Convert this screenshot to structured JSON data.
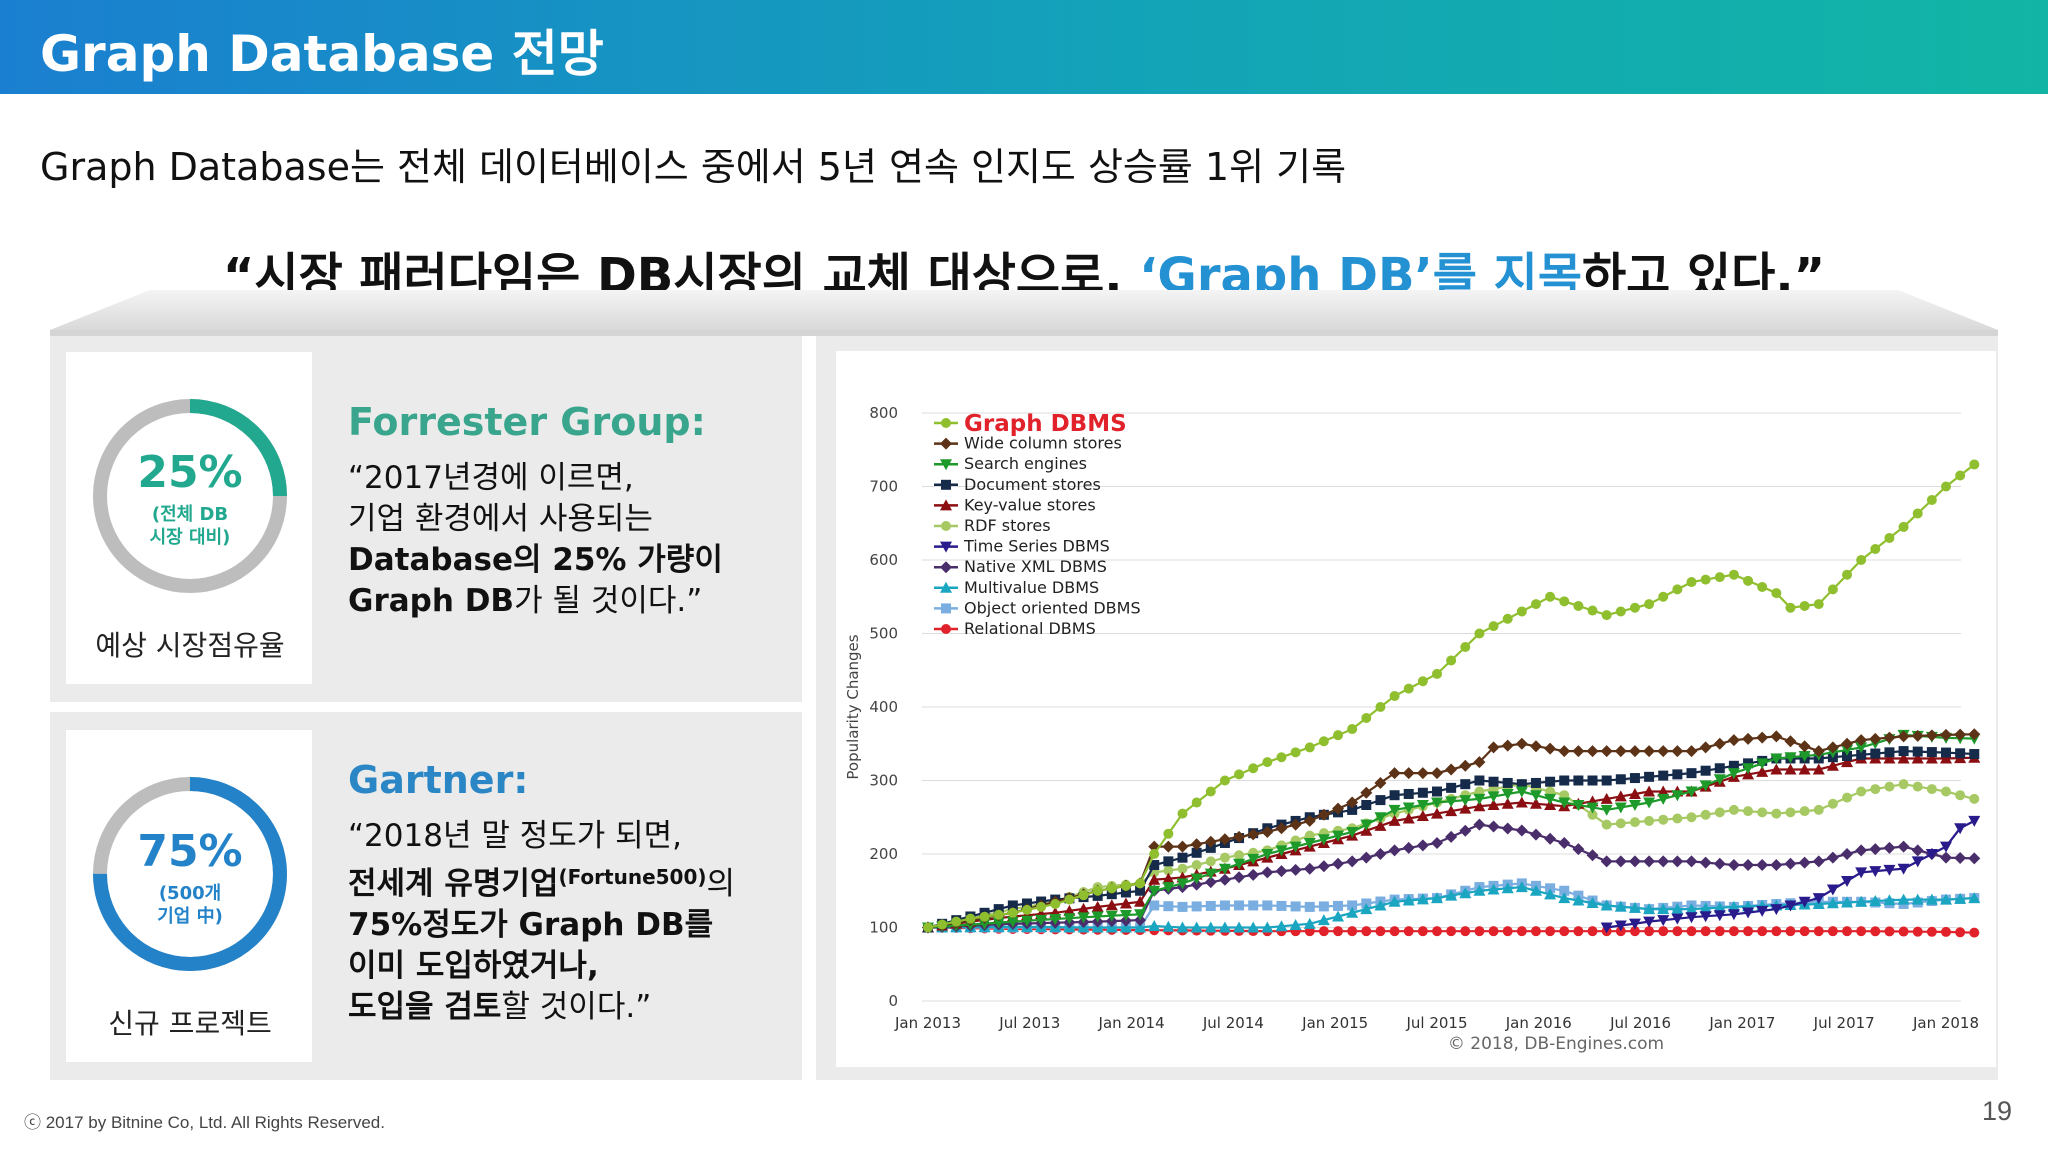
{
  "header": {
    "title": "Graph Database 전망"
  },
  "subtitle": "Graph Database는 전체 데이터베이스 중에서 5년 연속 인지도 상승률 1위 기록",
  "quote": {
    "part1": "“시장 패러다임은 DB시장의 교체 대상으로, ",
    "highlight": "‘Graph DB’를 지목",
    "part2": "하고 있다.”"
  },
  "forrester": {
    "percent": "25%",
    "percent_note_1": "(전체 DB",
    "percent_note_2": "시장 대비)",
    "caption": "예상 시장점유율",
    "title": "Forrester Group:",
    "line1": "“2017년경에 이르면,",
    "line2": "기업 환경에서 사용되는",
    "line3_bold": "Database의 25% 가량이",
    "line4_bold": "Graph DB",
    "line4_rest": "가 될 것이다.”",
    "ring_value": 0.25,
    "color": "#22a88f"
  },
  "gartner": {
    "percent": "75%",
    "percent_note_1": "(500개",
    "percent_note_2": "기업 中)",
    "caption": "신규 프로젝트",
    "title": "Gartner:",
    "line1": "“2018년 말 정도가 되면,",
    "line2_bold": "전세계 유명기업",
    "line2_sup": "(Fortune500)",
    "line2_rest": "의",
    "line3_bold": "75%정도가 Graph DB를",
    "line4_bold": "이미 도입하였거나,",
    "line5_bold": "도입을 검토",
    "line5_rest": "할 것이다.”",
    "ring_value": 0.75,
    "color": "#2382c8"
  },
  "chart_data": {
    "type": "line",
    "ylabel": "Popularity Changes",
    "ylim": [
      0,
      800
    ],
    "yticks": [
      0,
      100,
      200,
      300,
      400,
      500,
      600,
      700,
      800
    ],
    "x_labels": [
      "Jan 2013",
      "Jul 2013",
      "Jan 2014",
      "Jul 2014",
      "Jan 2015",
      "Jul 2015",
      "Jan 2016",
      "Jul 2016",
      "Jan 2017",
      "Jul 2017",
      "Jan 2018"
    ],
    "grid": "horizontal",
    "legend_position": "top-left",
    "credit": "© 2018, DB-Engines.com",
    "series": [
      {
        "name": "Graph DBMS",
        "color": "#8fbf2f",
        "marker": "circle",
        "anchors": [
          [
            0,
            100
          ],
          [
            3,
            112
          ],
          [
            6,
            120
          ],
          [
            9,
            132
          ],
          [
            12,
            150
          ],
          [
            15,
            160
          ],
          [
            16,
            200
          ],
          [
            18,
            255
          ],
          [
            21,
            300
          ],
          [
            24,
            325
          ],
          [
            27,
            345
          ],
          [
            30,
            370
          ],
          [
            33,
            415
          ],
          [
            36,
            445
          ],
          [
            39,
            500
          ],
          [
            42,
            530
          ],
          [
            44,
            550
          ],
          [
            48,
            525
          ],
          [
            51,
            540
          ],
          [
            54,
            570
          ],
          [
            57,
            580
          ],
          [
            60,
            555
          ],
          [
            61,
            535
          ],
          [
            63,
            540
          ],
          [
            66,
            600
          ],
          [
            69,
            645
          ],
          [
            72,
            700
          ],
          [
            74,
            730
          ]
        ]
      },
      {
        "name": "Wide column stores",
        "color": "#5c3317",
        "marker": "diamond",
        "anchors": [
          [
            0,
            100
          ],
          [
            6,
            120
          ],
          [
            12,
            150
          ],
          [
            15,
            160
          ],
          [
            16,
            210
          ],
          [
            18,
            210
          ],
          [
            21,
            220
          ],
          [
            24,
            230
          ],
          [
            27,
            245
          ],
          [
            30,
            270
          ],
          [
            33,
            310
          ],
          [
            36,
            310
          ],
          [
            39,
            325
          ],
          [
            40,
            345
          ],
          [
            42,
            350
          ],
          [
            45,
            340
          ],
          [
            48,
            340
          ],
          [
            51,
            340
          ],
          [
            54,
            340
          ],
          [
            57,
            355
          ],
          [
            60,
            360
          ],
          [
            63,
            340
          ],
          [
            66,
            355
          ],
          [
            69,
            360
          ],
          [
            72,
            362
          ],
          [
            74,
            363
          ]
        ]
      },
      {
        "name": "Search engines",
        "color": "#1d9a2a",
        "marker": "triangle-down",
        "anchors": [
          [
            0,
            100
          ],
          [
            6,
            108
          ],
          [
            12,
            115
          ],
          [
            15,
            118
          ],
          [
            16,
            150
          ],
          [
            18,
            160
          ],
          [
            21,
            180
          ],
          [
            24,
            200
          ],
          [
            27,
            215
          ],
          [
            30,
            230
          ],
          [
            33,
            260
          ],
          [
            36,
            270
          ],
          [
            39,
            275
          ],
          [
            42,
            285
          ],
          [
            45,
            270
          ],
          [
            48,
            260
          ],
          [
            51,
            270
          ],
          [
            54,
            285
          ],
          [
            57,
            310
          ],
          [
            60,
            330
          ],
          [
            63,
            335
          ],
          [
            66,
            345
          ],
          [
            69,
            362
          ],
          [
            72,
            358
          ],
          [
            74,
            357
          ]
        ]
      },
      {
        "name": "Document stores",
        "color": "#162b4a",
        "marker": "square",
        "anchors": [
          [
            0,
            100
          ],
          [
            3,
            115
          ],
          [
            6,
            130
          ],
          [
            9,
            138
          ],
          [
            12,
            143
          ],
          [
            15,
            150
          ],
          [
            16,
            185
          ],
          [
            18,
            195
          ],
          [
            21,
            215
          ],
          [
            24,
            235
          ],
          [
            27,
            250
          ],
          [
            30,
            260
          ],
          [
            33,
            280
          ],
          [
            36,
            285
          ],
          [
            39,
            300
          ],
          [
            42,
            295
          ],
          [
            45,
            300
          ],
          [
            48,
            300
          ],
          [
            51,
            305
          ],
          [
            54,
            310
          ],
          [
            57,
            320
          ],
          [
            60,
            330
          ],
          [
            63,
            330
          ],
          [
            66,
            335
          ],
          [
            69,
            340
          ],
          [
            72,
            338
          ],
          [
            74,
            336
          ]
        ]
      },
      {
        "name": "Key-value stores",
        "color": "#8b0f12",
        "marker": "triangle",
        "anchors": [
          [
            0,
            100
          ],
          [
            3,
            108
          ],
          [
            6,
            115
          ],
          [
            9,
            120
          ],
          [
            12,
            128
          ],
          [
            15,
            135
          ],
          [
            16,
            165
          ],
          [
            18,
            168
          ],
          [
            21,
            180
          ],
          [
            24,
            195
          ],
          [
            27,
            210
          ],
          [
            30,
            225
          ],
          [
            33,
            245
          ],
          [
            36,
            255
          ],
          [
            39,
            265
          ],
          [
            42,
            270
          ],
          [
            45,
            265
          ],
          [
            48,
            275
          ],
          [
            51,
            285
          ],
          [
            54,
            285
          ],
          [
            57,
            305
          ],
          [
            60,
            315
          ],
          [
            63,
            315
          ],
          [
            66,
            330
          ],
          [
            69,
            330
          ],
          [
            72,
            330
          ],
          [
            74,
            331
          ]
        ]
      },
      {
        "name": "RDF stores",
        "color": "#a6c963",
        "marker": "circle",
        "anchors": [
          [
            0,
            100
          ],
          [
            3,
            112
          ],
          [
            6,
            125
          ],
          [
            9,
            135
          ],
          [
            12,
            155
          ],
          [
            15,
            160
          ],
          [
            16,
            175
          ],
          [
            18,
            180
          ],
          [
            21,
            195
          ],
          [
            24,
            205
          ],
          [
            27,
            225
          ],
          [
            30,
            235
          ],
          [
            33,
            255
          ],
          [
            36,
            270
          ],
          [
            39,
            285
          ],
          [
            42,
            295
          ],
          [
            45,
            280
          ],
          [
            48,
            240
          ],
          [
            51,
            245
          ],
          [
            54,
            250
          ],
          [
            57,
            260
          ],
          [
            60,
            255
          ],
          [
            63,
            260
          ],
          [
            66,
            285
          ],
          [
            69,
            295
          ],
          [
            72,
            285
          ],
          [
            74,
            275
          ]
        ]
      },
      {
        "name": "Time Series DBMS",
        "color": "#2a1b8c",
        "marker": "triangle-down",
        "anchors": [
          [
            48,
            100
          ],
          [
            51,
            108
          ],
          [
            54,
            114
          ],
          [
            57,
            118
          ],
          [
            60,
            125
          ],
          [
            63,
            140
          ],
          [
            66,
            175
          ],
          [
            69,
            180
          ],
          [
            72,
            210
          ],
          [
            73,
            235
          ],
          [
            74,
            245
          ]
        ]
      },
      {
        "name": "Native XML DBMS",
        "color": "#4a2e6b",
        "marker": "diamond",
        "anchors": [
          [
            0,
            100
          ],
          [
            6,
            105
          ],
          [
            12,
            108
          ],
          [
            15,
            110
          ],
          [
            16,
            150
          ],
          [
            18,
            155
          ],
          [
            21,
            165
          ],
          [
            24,
            175
          ],
          [
            27,
            180
          ],
          [
            30,
            190
          ],
          [
            33,
            205
          ],
          [
            36,
            215
          ],
          [
            39,
            240
          ],
          [
            42,
            232
          ],
          [
            45,
            215
          ],
          [
            48,
            190
          ],
          [
            51,
            190
          ],
          [
            54,
            190
          ],
          [
            57,
            185
          ],
          [
            60,
            185
          ],
          [
            63,
            190
          ],
          [
            66,
            205
          ],
          [
            69,
            210
          ],
          [
            72,
            195
          ],
          [
            74,
            194
          ]
        ]
      },
      {
        "name": "Multivalue DBMS",
        "color": "#1aa5c1",
        "marker": "triangle",
        "anchors": [
          [
            0,
            100
          ],
          [
            6,
            101
          ],
          [
            12,
            100
          ],
          [
            15,
            100
          ],
          [
            16,
            102
          ],
          [
            18,
            100
          ],
          [
            21,
            100
          ],
          [
            24,
            100
          ],
          [
            27,
            105
          ],
          [
            30,
            120
          ],
          [
            33,
            135
          ],
          [
            36,
            140
          ],
          [
            39,
            150
          ],
          [
            42,
            155
          ],
          [
            45,
            140
          ],
          [
            48,
            130
          ],
          [
            51,
            125
          ],
          [
            54,
            125
          ],
          [
            57,
            128
          ],
          [
            60,
            130
          ],
          [
            63,
            132
          ],
          [
            66,
            135
          ],
          [
            69,
            138
          ],
          [
            72,
            138
          ],
          [
            74,
            140
          ]
        ]
      },
      {
        "name": "Object oriented DBMS",
        "color": "#7aaee0",
        "marker": "square",
        "anchors": [
          [
            0,
            100
          ],
          [
            6,
            100
          ],
          [
            12,
            100
          ],
          [
            15,
            100
          ],
          [
            16,
            130
          ],
          [
            18,
            128
          ],
          [
            21,
            130
          ],
          [
            24,
            130
          ],
          [
            27,
            128
          ],
          [
            30,
            130
          ],
          [
            33,
            138
          ],
          [
            36,
            140
          ],
          [
            39,
            155
          ],
          [
            42,
            160
          ],
          [
            45,
            150
          ],
          [
            48,
            130
          ],
          [
            51,
            125
          ],
          [
            54,
            130
          ],
          [
            57,
            128
          ],
          [
            60,
            132
          ],
          [
            63,
            135
          ],
          [
            66,
            135
          ],
          [
            69,
            132
          ],
          [
            72,
            138
          ],
          [
            74,
            140
          ]
        ]
      },
      {
        "name": "Relational DBMS",
        "color": "#e1222b",
        "marker": "circle",
        "anchors": [
          [
            0,
            100
          ],
          [
            6,
            98
          ],
          [
            12,
            97
          ],
          [
            18,
            96
          ],
          [
            24,
            95
          ],
          [
            30,
            95
          ],
          [
            36,
            95
          ],
          [
            42,
            95
          ],
          [
            48,
            95
          ],
          [
            54,
            95
          ],
          [
            60,
            95
          ],
          [
            66,
            95
          ],
          [
            72,
            94
          ],
          [
            74,
            93
          ]
        ]
      }
    ]
  }
}
